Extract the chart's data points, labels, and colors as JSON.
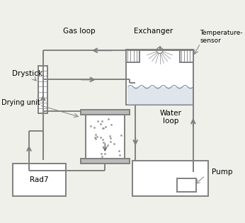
{
  "background_color": "#f0f0eb",
  "line_color": "#808080",
  "text_color": "#000000",
  "labels": {
    "gas_loop": "Gas loop",
    "exchanger": "Exchanger",
    "temperature_sensor": "Temperature-\nsensor",
    "drystick": "Drystick",
    "drying_unit": "Drying unit",
    "water_loop": "Water\nloop",
    "rad7": "Rad7",
    "pump": "Pump"
  },
  "figsize": [
    3.46,
    3.15
  ],
  "dpi": 100
}
